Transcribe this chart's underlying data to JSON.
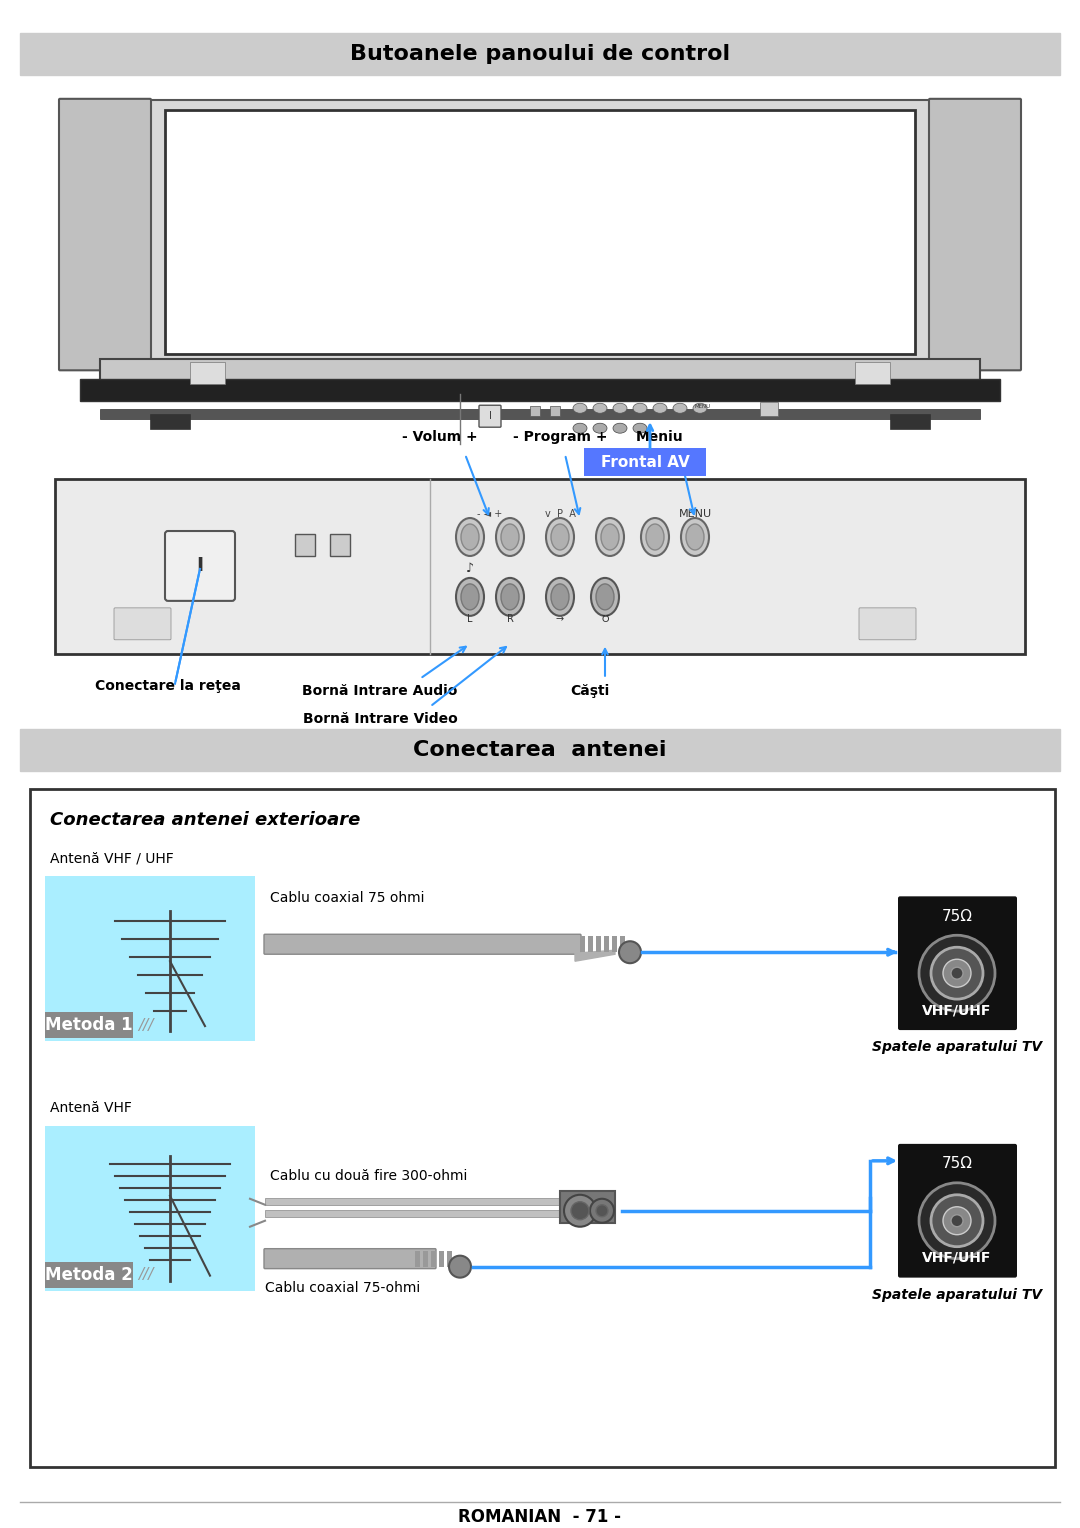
{
  "title1": "Butoanele panoului de control",
  "title2": "Conectarea  antenei",
  "footer_text": "ROMANIAN  - 71 -",
  "sec1": {
    "conectare": "Conectare la reţea",
    "volum": "- Volum +",
    "program": "- Program +",
    "meniu": "Meniu",
    "frontal_av": "Frontal AV",
    "borna_audio": "Bornă Intrare Audio",
    "borna_video": "Bornă Intrare Video",
    "casti": "Căşti"
  },
  "sec2": {
    "title_italic": "Conectarea antenei exterioare",
    "antena1": "Antenă VHF / UHF",
    "metoda1": "Metoda 1",
    "cablu1": "Cablu coaxial 75 ohmi",
    "vhf1": "VHF/UHF",
    "spatele1": "Spatele aparatului TV",
    "ohm1": "75Ω",
    "antena2": "Antenă VHF",
    "metoda2": "Metoda 2",
    "cablu2": "Cablu cu două fire 300-ohmi",
    "cablu3": "Cablu coaxial 75-ohmi",
    "vhf2": "VHF/UHF",
    "spatele2": "Spatele aparatului TV",
    "ohm2": "75Ω"
  },
  "colors": {
    "title_bg": "#cccccc",
    "white": "#ffffff",
    "black": "#000000",
    "light_gray": "#e8e8e8",
    "tv_body": "#d8d8d8",
    "tv_screen": "#f5f5f5",
    "tv_bezel": "#c8c8c8",
    "panel_bg": "#ebebeb",
    "cyan_bg": "#aaeeff",
    "blue_arrow": "#3399ff",
    "frontal_bg": "#5577ff",
    "metoda_bg": "#888888",
    "black_box": "#111111",
    "cable_gray": "#aaaaaa",
    "connector_dark": "#444444",
    "btn_gray": "#bbbbbb",
    "btn_edge": "#777777"
  }
}
